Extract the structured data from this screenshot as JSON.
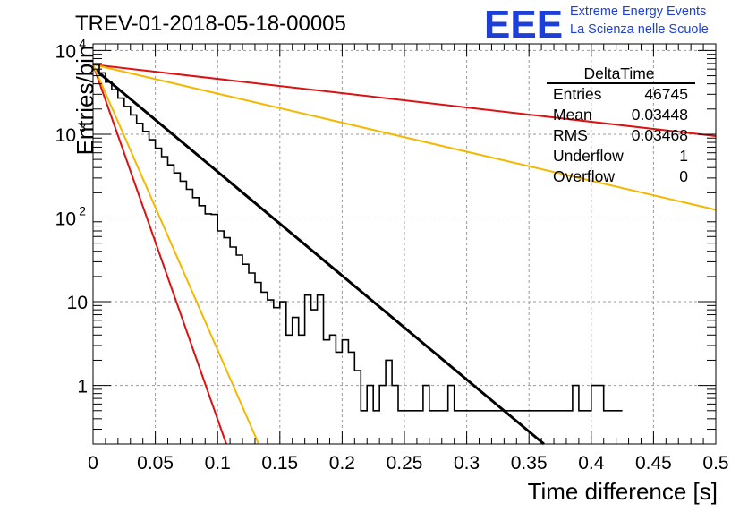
{
  "chart_data": {
    "type": "histogram",
    "title": "TREV-01-2018-05-18-00005",
    "xlabel": "Time difference [s]",
    "ylabel": "Entries/bin",
    "xlim": [
      0,
      0.5
    ],
    "ylim": [
      0.2,
      12000
    ],
    "yscale": "log",
    "grid": true,
    "x_ticks": [
      "0",
      "0.05",
      "0.1",
      "0.15",
      "0.2",
      "0.25",
      "0.3",
      "0.35",
      "0.4",
      "0.45",
      "0.5"
    ],
    "y_ticks": [
      {
        "value": 1,
        "label": "1"
      },
      {
        "value": 10,
        "label": "10"
      },
      {
        "value": 100,
        "label": "10",
        "exp": "2"
      },
      {
        "value": 1000,
        "label": "10",
        "exp": "3"
      },
      {
        "value": 10000,
        "label": "10",
        "exp": "4"
      }
    ],
    "histogram": {
      "name": "DeltaTime",
      "bin_width": 0.005,
      "x_start": 0,
      "counts": [
        6800,
        5400,
        4200,
        3400,
        2700,
        2150,
        1700,
        1350,
        1080,
        860,
        680,
        540,
        430,
        345,
        275,
        220,
        175,
        140,
        112,
        110,
        70,
        58,
        45,
        36,
        28,
        22,
        17,
        13,
        10.5,
        8.5,
        10,
        4,
        6.5,
        4,
        12,
        8,
        12,
        3.5,
        4,
        2.5,
        3.5,
        2.5,
        1.5,
        0.5,
        1,
        0.5,
        1,
        2,
        1,
        0.5,
        0.5,
        0.5,
        0.5,
        1,
        0.5,
        0.5,
        0.5,
        1,
        0.5,
        0.5,
        0.5,
        0.5,
        0.5,
        0.5,
        0.5,
        0.5,
        0.5,
        0.5,
        0.5,
        0.5,
        0.5,
        0.5,
        0.5,
        0.5,
        0.5,
        0.5,
        0.5,
        1,
        0.5,
        0.5,
        1,
        1,
        0.5,
        0.5,
        0.5
      ]
    },
    "curves": [
      {
        "color": "#000000",
        "x": [
          0,
          0.362
        ],
        "y": [
          6200,
          0.2
        ]
      },
      {
        "color": "#dd1111",
        "x": [
          0,
          0.5
        ],
        "y": [
          6800,
          950
        ]
      },
      {
        "color": "#f5b800",
        "x": [
          0,
          0.5
        ],
        "y": [
          6800,
          125
        ]
      },
      {
        "color": "#dd1111",
        "x": [
          0,
          0.107
        ],
        "y": [
          6800,
          0.2
        ]
      },
      {
        "color": "#f5b800",
        "x": [
          0,
          0.133
        ],
        "y": [
          6800,
          0.2
        ]
      }
    ],
    "stats_box": {
      "title": "DeltaTime",
      "rows": [
        {
          "label": "Entries",
          "value": "46745"
        },
        {
          "label": "Mean",
          "value": "0.03448"
        },
        {
          "label": "RMS",
          "value": "0.03468"
        },
        {
          "label": "Underflow",
          "value": "1"
        },
        {
          "label": "Overflow",
          "value": "0"
        }
      ]
    }
  },
  "logo": {
    "big": "EEE",
    "line1": "Extreme Energy Events",
    "line2": "La Scienza nelle Scuole"
  }
}
